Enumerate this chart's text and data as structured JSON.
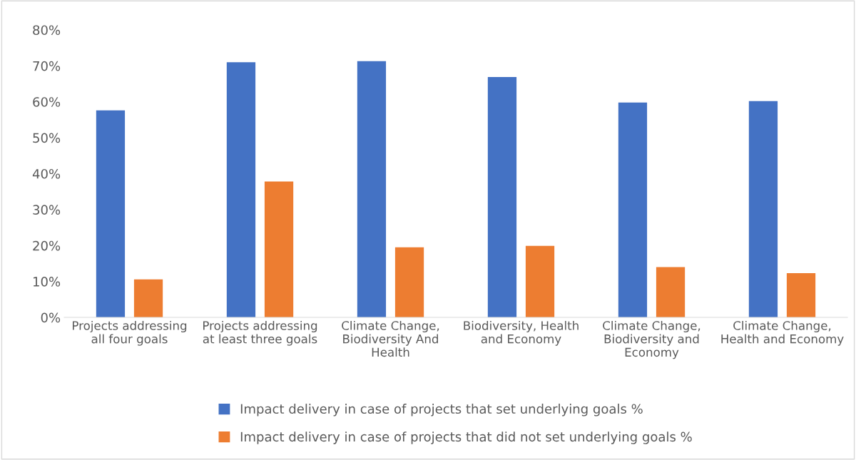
{
  "chart_data": {
    "type": "bar",
    "categories": [
      "Projects addressing all four goals",
      "Projects addressing at least three goals",
      "Climate Change, Biodiversity And Health",
      "Biodiversity, Health and Economy",
      "Climate Change, Biodiversity and Economy",
      "Climate Change, Health and Economy"
    ],
    "series": [
      {
        "name": "Impact delivery in case of projects that set underlying goals %",
        "color": "#4472c4",
        "values": [
          57.6,
          71.0,
          71.3,
          66.9,
          59.8,
          60.2
        ]
      },
      {
        "name": "Impact delivery in case of projects that did not set underlying goals %",
        "color": "#ed7d31",
        "values": [
          10.6,
          37.8,
          19.5,
          19.9,
          14.0,
          12.3
        ]
      }
    ],
    "ylim": [
      0,
      80
    ],
    "yticks": [
      {
        "value": 0,
        "label": "0%"
      },
      {
        "value": 10,
        "label": "10%"
      },
      {
        "value": 20,
        "label": "20%"
      },
      {
        "value": 30,
        "label": "30%"
      },
      {
        "value": 40,
        "label": "40%"
      },
      {
        "value": 50,
        "label": "50%"
      },
      {
        "value": 60,
        "label": "60%"
      },
      {
        "value": 70,
        "label": "70%"
      },
      {
        "value": 80,
        "label": "80%"
      }
    ],
    "grid": false,
    "legend": "bottom"
  }
}
